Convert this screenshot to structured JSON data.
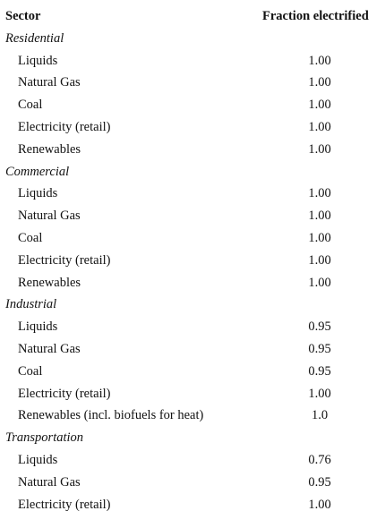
{
  "table": {
    "header": [
      "Sector",
      "Fraction electrified"
    ],
    "groups": [
      {
        "name": "Residential",
        "rows": [
          [
            "Liquids",
            "1.00"
          ],
          [
            "Natural Gas",
            "1.00"
          ],
          [
            "Coal",
            "1.00"
          ],
          [
            "Electricity (retail)",
            "1.00"
          ],
          [
            "Renewables",
            "1.00"
          ]
        ]
      },
      {
        "name": "Commercial",
        "rows": [
          [
            "Liquids",
            "1.00"
          ],
          [
            "Natural Gas",
            "1.00"
          ],
          [
            "Coal",
            "1.00"
          ],
          [
            "Electricity (retail)",
            "1.00"
          ],
          [
            "Renewables",
            "1.00"
          ]
        ]
      },
      {
        "name": "Industrial",
        "rows": [
          [
            "Liquids",
            "0.95"
          ],
          [
            "Natural Gas",
            "0.95"
          ],
          [
            "Coal",
            "0.95"
          ],
          [
            "Electricity (retail)",
            "1.00"
          ],
          [
            "Renewables (incl. biofuels for heat)",
            "1.0"
          ]
        ]
      },
      {
        "name": "Transportation",
        "rows": [
          [
            "Liquids",
            "0.76"
          ],
          [
            "Natural Gas",
            "0.95"
          ],
          [
            "Electricity (retail)",
            "1.00"
          ]
        ]
      }
    ]
  }
}
